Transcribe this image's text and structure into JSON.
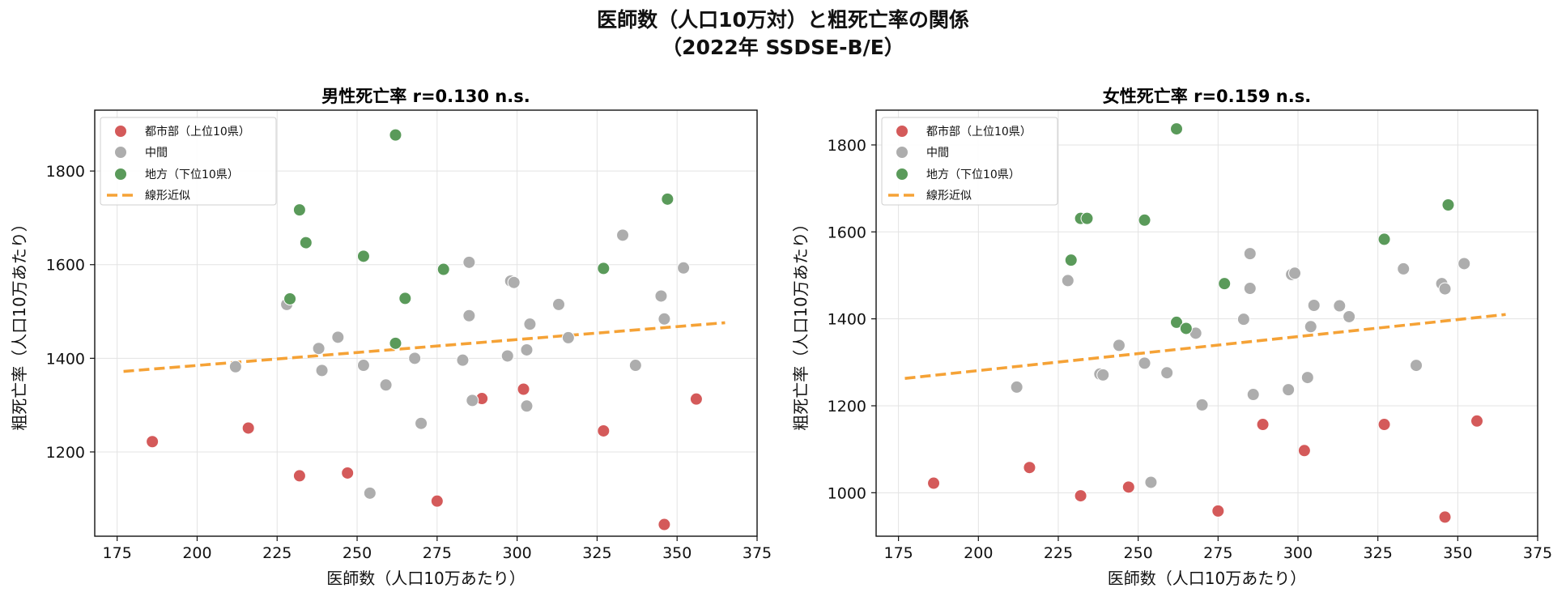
{
  "suptitle": {
    "line1": "医師数（人口10万対）と粗死亡率の関係",
    "line2": "（2022年 SSDSE-B/E）"
  },
  "legend_labels": [
    "都市部（上位10県）",
    "中間",
    "地方（下位10県）",
    "線形近似"
  ],
  "colors": {
    "urban": "#d45a5a",
    "middle": "#adadad",
    "rural": "#5a9a5a",
    "fit": "#f5a236"
  },
  "chart_data": [
    {
      "type": "scatter",
      "title": "男性死亡率  r=0.130 n.s.",
      "xlabel": "医師数（人口10万あたり）",
      "ylabel": "粗死亡率（人口10万あたり）",
      "xlim": [
        168,
        375
      ],
      "ylim": [
        1020,
        1930
      ],
      "xticks": [
        175,
        200,
        225,
        250,
        275,
        300,
        325,
        350,
        375
      ],
      "yticks": [
        1200,
        1400,
        1600,
        1800
      ],
      "grid": true,
      "legend_position": "top-left",
      "series": [
        {
          "name": "都市部（上位10県）",
          "color_key": "urban",
          "points": [
            [
              186,
              1222
            ],
            [
              216,
              1251
            ],
            [
              232,
              1149
            ],
            [
              247,
              1155
            ],
            [
              275,
              1095
            ],
            [
              289,
              1314
            ],
            [
              302,
              1334
            ],
            [
              327,
              1245
            ],
            [
              346,
              1045
            ],
            [
              356,
              1313
            ]
          ]
        },
        {
          "name": "中間",
          "color_key": "middle",
          "points": [
            [
              212,
              1382
            ],
            [
              228,
              1515
            ],
            [
              238,
              1421
            ],
            [
              239,
              1374
            ],
            [
              244,
              1445
            ],
            [
              252,
              1385
            ],
            [
              254,
              1112
            ],
            [
              259,
              1343
            ],
            [
              268,
              1400
            ],
            [
              270,
              1261
            ],
            [
              283,
              1396
            ],
            [
              285,
              1491
            ],
            [
              285,
              1605
            ],
            [
              286,
              1310
            ],
            [
              297,
              1405
            ],
            [
              298,
              1565
            ],
            [
              299,
              1562
            ],
            [
              303,
              1298
            ],
            [
              304,
              1473
            ],
            [
              313,
              1515
            ],
            [
              316,
              1444
            ],
            [
              333,
              1663
            ],
            [
              337,
              1385
            ],
            [
              345,
              1533
            ],
            [
              346,
              1484
            ],
            [
              352,
              1593
            ],
            [
              303,
              1418
            ]
          ]
        },
        {
          "name": "地方（下位10県）",
          "color_key": "rural",
          "points": [
            [
              229,
              1527
            ],
            [
              232,
              1717
            ],
            [
              234,
              1647
            ],
            [
              252,
              1618
            ],
            [
              262,
              1432
            ],
            [
              262,
              1877
            ],
            [
              265,
              1528
            ],
            [
              277,
              1590
            ],
            [
              327,
              1592
            ],
            [
              347,
              1740
            ]
          ]
        }
      ],
      "fit_line": {
        "name": "線形近似",
        "x": [
          177,
          365
        ],
        "y": [
          1372,
          1476
        ]
      }
    },
    {
      "type": "scatter",
      "title": "女性死亡率  r=0.159 n.s.",
      "xlabel": "医師数（人口10万あたり）",
      "ylabel": "粗死亡率（人口10万あたり）",
      "xlim": [
        168,
        375
      ],
      "ylim": [
        900,
        1880
      ],
      "xticks": [
        175,
        200,
        225,
        250,
        275,
        300,
        325,
        350,
        375
      ],
      "yticks": [
        1000,
        1200,
        1400,
        1600,
        1800
      ],
      "grid": true,
      "legend_position": "top-left",
      "series": [
        {
          "name": "都市部（上位10県）",
          "color_key": "urban",
          "points": [
            [
              186,
              1022
            ],
            [
              216,
              1058
            ],
            [
              232,
              993
            ],
            [
              247,
              1013
            ],
            [
              275,
              958
            ],
            [
              289,
              1157
            ],
            [
              302,
              1097
            ],
            [
              327,
              1157
            ],
            [
              346,
              944
            ],
            [
              356,
              1165
            ]
          ]
        },
        {
          "name": "中間",
          "color_key": "middle",
          "points": [
            [
              212,
              1243
            ],
            [
              228,
              1488
            ],
            [
              238,
              1273
            ],
            [
              239,
              1271
            ],
            [
              244,
              1339
            ],
            [
              252,
              1298
            ],
            [
              254,
              1024
            ],
            [
              259,
              1276
            ],
            [
              268,
              1367
            ],
            [
              270,
              1202
            ],
            [
              283,
              1399
            ],
            [
              285,
              1470
            ],
            [
              285,
              1550
            ],
            [
              286,
              1226
            ],
            [
              297,
              1237
            ],
            [
              298,
              1502
            ],
            [
              299,
              1505
            ],
            [
              303,
              1265
            ],
            [
              304,
              1382
            ],
            [
              305,
              1431
            ],
            [
              313,
              1430
            ],
            [
              316,
              1405
            ],
            [
              333,
              1515
            ],
            [
              337,
              1293
            ],
            [
              345,
              1481
            ],
            [
              346,
              1469
            ],
            [
              352,
              1527
            ]
          ]
        },
        {
          "name": "地方（下位10県）",
          "color_key": "rural",
          "points": [
            [
              229,
              1535
            ],
            [
              232,
              1631
            ],
            [
              234,
              1631
            ],
            [
              252,
              1627
            ],
            [
              262,
              1392
            ],
            [
              262,
              1837
            ],
            [
              265,
              1378
            ],
            [
              277,
              1481
            ],
            [
              327,
              1583
            ],
            [
              347,
              1662
            ]
          ]
        }
      ],
      "fit_line": {
        "name": "線形近似",
        "x": [
          177,
          365
        ],
        "y": [
          1263,
          1410
        ]
      }
    }
  ]
}
